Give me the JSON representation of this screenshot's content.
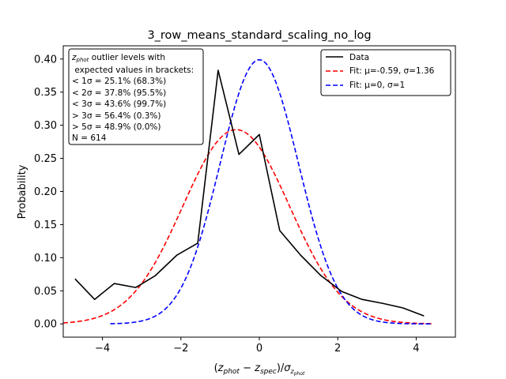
{
  "chart_data": {
    "type": "line",
    "title": "3_row_means_standard_scaling_no_log",
    "xlabel": "(z_phot − z_spec)/σ_z_phot",
    "ylabel": "Probability",
    "xlim": [
      -5,
      5
    ],
    "ylim": [
      -0.02,
      0.42
    ],
    "xticks": [
      -4,
      -2,
      0,
      2,
      4
    ],
    "xtick_labels": [
      "−4",
      "−2",
      "0",
      "2",
      "4"
    ],
    "yticks": [
      0.0,
      0.05,
      0.1,
      0.15,
      0.2,
      0.25,
      0.3,
      0.35,
      0.4
    ],
    "ytick_labels": [
      "0.00",
      "0.05",
      "0.10",
      "0.15",
      "0.20",
      "0.25",
      "0.30",
      "0.35",
      "0.40"
    ],
    "grid": false,
    "legend_position": "top-right",
    "series": [
      {
        "name": "Data",
        "color": "#000000",
        "style": "solid",
        "x": [
          -4.7,
          -4.2,
          -3.7,
          -3.15,
          -2.65,
          -2.1,
          -1.57,
          -1.05,
          -0.52,
          0.0,
          0.52,
          1.05,
          1.57,
          2.1,
          2.62,
          3.15,
          3.67,
          4.2
        ],
        "y": [
          0.068,
          0.037,
          0.061,
          0.055,
          0.073,
          0.104,
          0.122,
          0.383,
          0.256,
          0.286,
          0.141,
          0.104,
          0.073,
          0.049,
          0.037,
          0.031,
          0.024,
          0.012
        ]
      },
      {
        "name": "Fit: μ=-0.59, σ=1.36",
        "color": "#ff0000",
        "style": "dashed",
        "mu": -0.59,
        "sigma": 1.36,
        "x_range": [
          -5,
          4.4
        ]
      },
      {
        "name": "Fit: μ=0, σ=1",
        "color": "#0000ff",
        "style": "dashed",
        "mu": 0,
        "sigma": 1,
        "x_range": [
          -3.8,
          4.4
        ]
      }
    ],
    "annotation": {
      "title_z": "z",
      "title_sub": "phot",
      "title_rest": " outlier levels with",
      "lines": [
        " expected values in brackets:",
        "< 1σ = 25.1% (68.3%)",
        "< 2σ = 37.8% (95.5%)",
        "< 3σ = 43.6% (99.7%)",
        "> 3σ = 56.4% (0.3%)",
        "> 5σ = 48.9% (0.0%)",
        "N = 614"
      ]
    }
  }
}
